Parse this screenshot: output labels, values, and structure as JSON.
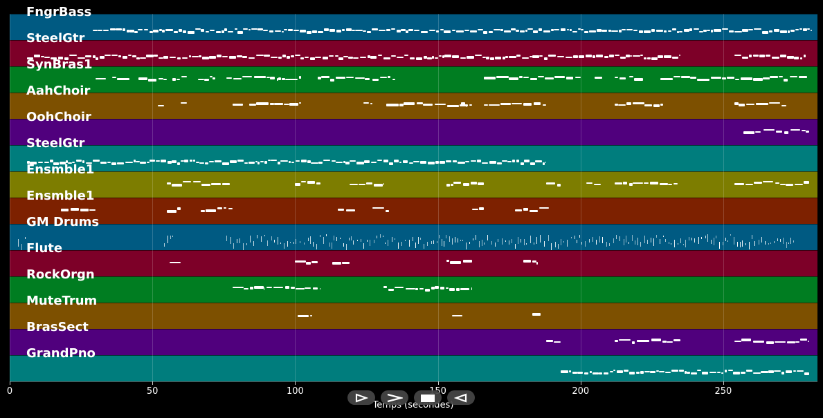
{
  "chart_data": {
    "type": "piano-roll",
    "xlabel": "Temps (secondes)",
    "xlim": [
      0,
      283
    ],
    "x_ticks": [
      "0",
      "50",
      "100",
      "150",
      "200",
      "250"
    ],
    "x_tick_values": [
      0,
      50,
      100,
      150,
      200,
      250
    ],
    "grid": true,
    "tracks": [
      {
        "name": "FngrBass",
        "color": "#005a82",
        "kind": "dense",
        "segments": [
          [
            29,
            281
          ]
        ]
      },
      {
        "name": "SteelGtr",
        "color": "#7d0028",
        "kind": "dense",
        "segments": [
          [
            6,
            235
          ],
          [
            254,
            279
          ]
        ]
      },
      {
        "name": "SynBras1",
        "color": "#007d21",
        "kind": "phrases",
        "segments": [
          [
            30,
            34
          ],
          [
            36,
            42
          ],
          [
            45,
            55
          ],
          [
            57,
            62
          ],
          [
            66,
            72
          ],
          [
            76,
            94
          ],
          [
            94,
            102
          ],
          [
            108,
            126
          ],
          [
            127,
            135
          ],
          [
            166,
            200
          ],
          [
            205,
            208
          ],
          [
            212,
            216
          ],
          [
            217,
            222
          ],
          [
            228,
            280
          ]
        ]
      },
      {
        "name": "AahChoir",
        "color": "#7d5000",
        "kind": "phrases",
        "segments": [
          [
            52,
            54
          ],
          [
            60,
            62
          ],
          [
            78,
            82
          ],
          [
            84,
            96
          ],
          [
            96,
            102
          ],
          [
            124,
            127
          ],
          [
            132,
            138
          ],
          [
            138,
            162
          ],
          [
            158,
            160
          ],
          [
            166,
            188
          ],
          [
            212,
            229
          ],
          [
            254,
            272
          ]
        ]
      },
      {
        "name": "OohChoir",
        "color": "#50007d",
        "kind": "phrases",
        "segments": [
          [
            257,
            263
          ],
          [
            264,
            280
          ]
        ]
      },
      {
        "name": "SteelGtr",
        "color": "#007d7d",
        "kind": "dense",
        "segments": [
          [
            6,
            188
          ]
        ]
      },
      {
        "name": "Ensmble1",
        "color": "#7d7d00",
        "kind": "phrases",
        "segments": [
          [
            55,
            77
          ],
          [
            100,
            109
          ],
          [
            119,
            131
          ],
          [
            153,
            166
          ],
          [
            188,
            193
          ],
          [
            202,
            207
          ],
          [
            212,
            234
          ],
          [
            254,
            280
          ]
        ]
      },
      {
        "name": "Ensmble1",
        "color": "#7d2100",
        "kind": "phrases",
        "segments": [
          [
            18,
            30
          ],
          [
            55,
            60
          ],
          [
            67,
            78
          ],
          [
            115,
            121
          ],
          [
            127,
            133
          ],
          [
            162,
            166
          ],
          [
            177,
            189
          ]
        ]
      },
      {
        "name": "GM Drums",
        "color": "#005a82",
        "kind": "drums",
        "segments": [
          [
            3,
            6
          ],
          [
            54,
            58
          ],
          [
            76,
            192
          ],
          [
            192,
            275
          ]
        ]
      },
      {
        "name": "Flute",
        "color": "#7d0028",
        "kind": "phrases",
        "segments": [
          [
            56,
            60
          ],
          [
            100,
            108
          ],
          [
            113,
            119
          ],
          [
            153,
            162
          ],
          [
            180,
            185
          ]
        ]
      },
      {
        "name": "RockOrgn",
        "color": "#007d21",
        "kind": "phrases",
        "segments": [
          [
            78,
            89
          ],
          [
            90,
            109
          ],
          [
            131,
            142
          ],
          [
            142,
            162
          ]
        ]
      },
      {
        "name": "MuteTrum",
        "color": "#7d5000",
        "kind": "phrases",
        "segments": [
          [
            101,
            106
          ],
          [
            155,
            159
          ],
          [
            183,
            186
          ]
        ]
      },
      {
        "name": "BrasSect",
        "color": "#50007d",
        "kind": "phrases",
        "segments": [
          [
            188,
            193
          ],
          [
            212,
            235
          ],
          [
            254,
            280
          ]
        ]
      },
      {
        "name": "GrandPno",
        "color": "#007d7d",
        "kind": "dense",
        "segments": [
          [
            193,
            280
          ]
        ]
      }
    ]
  },
  "controls": [
    {
      "name": "play-button",
      "icon": "play-icon"
    },
    {
      "name": "fast-forward-button",
      "icon": "fast-forward-icon"
    },
    {
      "name": "stop-button",
      "icon": "stop-icon"
    },
    {
      "name": "rewind-button",
      "icon": "rewind-icon"
    }
  ]
}
